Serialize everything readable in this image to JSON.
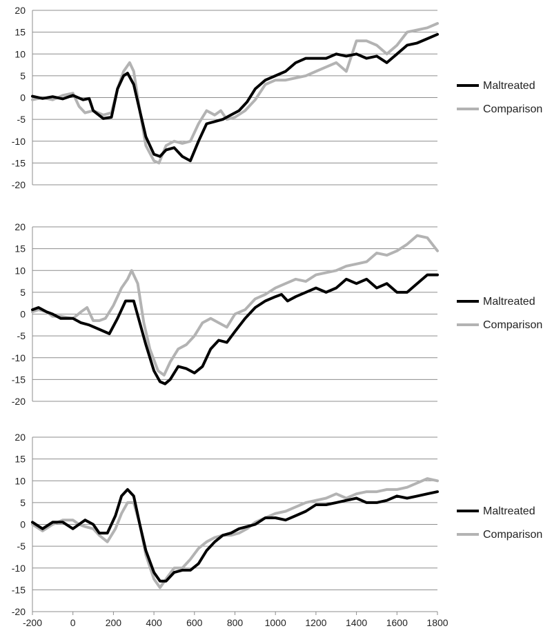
{
  "chart_data": [
    {
      "type": "line",
      "ylim": [
        -20,
        20
      ],
      "yticks": [
        20,
        15,
        10,
        5,
        0,
        -5,
        -10,
        -15,
        -20
      ],
      "xlim": [
        -200,
        1800
      ],
      "grid": "horizontal",
      "legend_position": "right",
      "series": [
        {
          "name": "Maltreated",
          "color": "#000000",
          "x": [
            -200,
            -150,
            -100,
            -50,
            0,
            50,
            80,
            100,
            150,
            190,
            220,
            250,
            270,
            300,
            330,
            360,
            400,
            430,
            460,
            500,
            540,
            580,
            620,
            660,
            700,
            740,
            780,
            820,
            860,
            900,
            950,
            1000,
            1050,
            1100,
            1150,
            1200,
            1250,
            1300,
            1350,
            1400,
            1450,
            1500,
            1550,
            1600,
            1650,
            1700,
            1750,
            1800
          ],
          "values": [
            0.3,
            -0.2,
            0.2,
            -0.3,
            0.5,
            -0.5,
            -0.2,
            -3,
            -4.8,
            -4.5,
            2,
            5,
            5.6,
            3,
            -3,
            -9,
            -13,
            -13.5,
            -12,
            -11.5,
            -13.5,
            -14.5,
            -10,
            -6,
            -5.5,
            -5,
            -4,
            -3,
            -1,
            2,
            4,
            5,
            6,
            8,
            9,
            9,
            9,
            10,
            9.5,
            10,
            9,
            9.5,
            8,
            10,
            12,
            12.5,
            13.5,
            14.5
          ]
        },
        {
          "name": "Comparison",
          "color": "#b3b3b3",
          "x": [
            -200,
            -150,
            -100,
            -50,
            0,
            30,
            60,
            100,
            150,
            190,
            220,
            250,
            280,
            300,
            330,
            360,
            400,
            425,
            460,
            500,
            540,
            580,
            620,
            660,
            700,
            730,
            760,
            800,
            850,
            900,
            950,
            1000,
            1050,
            1100,
            1150,
            1200,
            1250,
            1300,
            1350,
            1400,
            1450,
            1500,
            1550,
            1600,
            1650,
            1700,
            1750,
            1800
          ],
          "values": [
            -0.5,
            0,
            -0.5,
            0.5,
            1,
            -2,
            -3.5,
            -3,
            -4,
            -3.5,
            2,
            6,
            8,
            6,
            -3,
            -11,
            -14.5,
            -15,
            -11,
            -10,
            -10.5,
            -10,
            -6,
            -3,
            -4,
            -3,
            -5,
            -4.5,
            -3,
            -0.5,
            3,
            4,
            4,
            4.5,
            5,
            6,
            7,
            8,
            6,
            13,
            13,
            12,
            10,
            12,
            15,
            15.5,
            16,
            17
          ]
        }
      ]
    },
    {
      "type": "line",
      "ylim": [
        -20,
        20
      ],
      "yticks": [
        20,
        15,
        10,
        5,
        0,
        -5,
        -10,
        -15,
        -20
      ],
      "xlim": [
        -200,
        1800
      ],
      "grid": "horizontal",
      "legend_position": "right",
      "series": [
        {
          "name": "Maltreated",
          "color": "#000000",
          "x": [
            -200,
            -170,
            -130,
            -100,
            -60,
            0,
            40,
            80,
            130,
            180,
            220,
            260,
            300,
            330,
            360,
            400,
            430,
            455,
            480,
            520,
            560,
            600,
            640,
            680,
            720,
            760,
            800,
            850,
            900,
            950,
            1000,
            1030,
            1060,
            1100,
            1150,
            1200,
            1250,
            1300,
            1350,
            1400,
            1450,
            1500,
            1550,
            1600,
            1650,
            1700,
            1750,
            1800
          ],
          "values": [
            1,
            1.5,
            0.5,
            0,
            -1,
            -1,
            -2,
            -2.5,
            -3.5,
            -4.5,
            -1,
            3,
            3,
            -2,
            -7,
            -13,
            -15.5,
            -16,
            -15,
            -12,
            -12.5,
            -13.5,
            -12,
            -8,
            -6,
            -6.5,
            -4,
            -1,
            1.5,
            3,
            4,
            4.5,
            3,
            4,
            5,
            6,
            5,
            6,
            8,
            7,
            8,
            6,
            7,
            5,
            5,
            7,
            9,
            9
          ]
        },
        {
          "name": "Comparison",
          "color": "#b3b3b3",
          "x": [
            -200,
            -170,
            -130,
            -100,
            -60,
            0,
            40,
            70,
            100,
            130,
            160,
            200,
            240,
            270,
            290,
            320,
            350,
            380,
            420,
            450,
            480,
            520,
            560,
            600,
            640,
            680,
            720,
            760,
            800,
            850,
            900,
            950,
            1000,
            1050,
            1100,
            1150,
            1200,
            1250,
            1300,
            1350,
            1400,
            1450,
            1500,
            1550,
            1600,
            1650,
            1700,
            1750,
            1800
          ],
          "values": [
            0.5,
            1,
            0.5,
            -0.5,
            -0.5,
            -1,
            0.5,
            1.5,
            -1.5,
            -1.5,
            -1,
            2,
            6,
            8,
            10,
            7,
            -2,
            -8,
            -13,
            -14,
            -11,
            -8,
            -7,
            -5,
            -2,
            -1,
            -2,
            -3,
            0,
            1,
            3.5,
            4.5,
            6,
            7,
            8,
            7.5,
            9,
            9.5,
            10,
            11,
            11.5,
            12,
            14,
            13.5,
            14.5,
            16,
            18,
            17.5,
            14.5
          ]
        }
      ]
    },
    {
      "type": "line",
      "ylim": [
        -20,
        20
      ],
      "yticks": [
        20,
        15,
        10,
        5,
        0,
        -5,
        -10,
        -15,
        -20
      ],
      "xlim": [
        -200,
        1800
      ],
      "xticks": [
        -200,
        0,
        200,
        400,
        600,
        800,
        1000,
        1200,
        1400,
        1600,
        1800
      ],
      "grid": "horizontal",
      "legend_position": "right",
      "series": [
        {
          "name": "Maltreated",
          "color": "#000000",
          "x": [
            -200,
            -150,
            -100,
            -50,
            0,
            30,
            60,
            100,
            130,
            170,
            210,
            240,
            270,
            300,
            330,
            360,
            400,
            430,
            460,
            500,
            540,
            580,
            620,
            660,
            700,
            740,
            780,
            820,
            860,
            900,
            950,
            1000,
            1050,
            1100,
            1150,
            1200,
            1250,
            1300,
            1350,
            1400,
            1450,
            1500,
            1550,
            1600,
            1650,
            1700,
            1750,
            1800
          ],
          "values": [
            0.5,
            -1,
            0.5,
            0.5,
            -1,
            0,
            1,
            0,
            -2,
            -2,
            2,
            6.5,
            8,
            6.5,
            0,
            -6,
            -11,
            -13,
            -13,
            -11,
            -10.5,
            -10.5,
            -9,
            -6,
            -4,
            -2.5,
            -2,
            -1,
            -0.5,
            0,
            1.5,
            1.5,
            1,
            2,
            3,
            4.5,
            4.5,
            5,
            5.5,
            6,
            5,
            5,
            5.5,
            6.5,
            6,
            6.5,
            7,
            7.5
          ]
        },
        {
          "name": "Comparison",
          "color": "#b3b3b3",
          "x": [
            -200,
            -150,
            -100,
            -50,
            0,
            30,
            60,
            100,
            130,
            170,
            210,
            240,
            270,
            300,
            330,
            360,
            400,
            430,
            460,
            500,
            540,
            580,
            620,
            660,
            700,
            740,
            780,
            820,
            860,
            900,
            950,
            1000,
            1050,
            1100,
            1150,
            1200,
            1250,
            1300,
            1350,
            1400,
            1450,
            1500,
            1550,
            1600,
            1650,
            1700,
            1750,
            1800
          ],
          "values": [
            0,
            -1.5,
            0,
            1,
            1,
            0,
            -0.5,
            -1,
            -2.5,
            -4,
            -1,
            2.5,
            5,
            5,
            0,
            -7,
            -12.5,
            -14.5,
            -12.5,
            -10,
            -10,
            -8,
            -5.5,
            -4,
            -3,
            -2.5,
            -2.5,
            -2,
            -1,
            0.5,
            1.5,
            2.5,
            3,
            4,
            5,
            5.5,
            6,
            7,
            6,
            7,
            7.5,
            7.5,
            8,
            8,
            8.5,
            9.5,
            10.5,
            10
          ]
        }
      ]
    }
  ]
}
